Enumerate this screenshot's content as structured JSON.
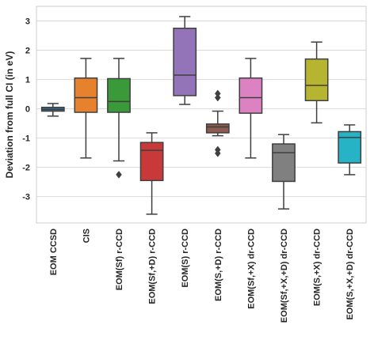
{
  "chart_data": {
    "type": "box",
    "xlabel": "",
    "ylabel": "Deviation from full CI (in eV)",
    "ylim": [
      -3.9,
      3.5
    ],
    "yticks": [
      -3,
      -2,
      -1,
      0,
      1,
      2,
      3
    ],
    "grid": true,
    "categories": [
      "EOM CCSD",
      "CIS",
      "EOM(Sf) r-CCD",
      "EOM(Sf,+D) r-CCD",
      "EOM(S) r-CCD",
      "EOM(S,+D) r-CCD",
      "EOM(Sf,+X) dr-CCD",
      "EOM(Sf,+X,+D) dr-CCD",
      "EOM(S,+X) dr-CCD",
      "EOM(S,+X,+D) dr-CCD"
    ],
    "colors": [
      "#3a6b8c",
      "#e6812e",
      "#3a9a3a",
      "#c83a3a",
      "#9474b8",
      "#8c5a4e",
      "#dc82c3",
      "#808080",
      "#b5b531",
      "#26b3c6"
    ],
    "boxes": [
      {
        "whislo": -0.25,
        "q1": -0.08,
        "med": -0.02,
        "q3": 0.05,
        "whishi": 0.18,
        "fliers": []
      },
      {
        "whislo": -1.68,
        "q1": -0.12,
        "med": 0.38,
        "q3": 1.05,
        "whishi": 1.72,
        "fliers": []
      },
      {
        "whislo": -1.78,
        "q1": -0.12,
        "med": 0.25,
        "q3": 1.03,
        "whishi": 1.72,
        "fliers": [
          -2.25
        ]
      },
      {
        "whislo": -3.6,
        "q1": -2.45,
        "med": -1.42,
        "q3": -1.15,
        "whishi": -0.82,
        "fliers": []
      },
      {
        "whislo": 0.15,
        "q1": 0.45,
        "med": 1.15,
        "q3": 2.75,
        "whishi": 3.15,
        "fliers": []
      },
      {
        "whislo": -0.92,
        "q1": -0.82,
        "med": -0.62,
        "q3": -0.52,
        "whishi": -0.08,
        "fliers": [
          0.38,
          0.52,
          -1.4,
          -1.52
        ]
      },
      {
        "whislo": -1.68,
        "q1": -0.15,
        "med": 0.38,
        "q3": 1.05,
        "whishi": 1.72,
        "fliers": []
      },
      {
        "whislo": -3.42,
        "q1": -2.48,
        "med": -1.5,
        "q3": -1.2,
        "whishi": -0.88,
        "fliers": []
      },
      {
        "whislo": -0.48,
        "q1": 0.28,
        "med": 0.8,
        "q3": 1.7,
        "whishi": 2.28,
        "fliers": []
      },
      {
        "whislo": -2.25,
        "q1": -1.85,
        "med": -0.98,
        "q3": -0.78,
        "whishi": -0.55,
        "fliers": []
      }
    ]
  }
}
